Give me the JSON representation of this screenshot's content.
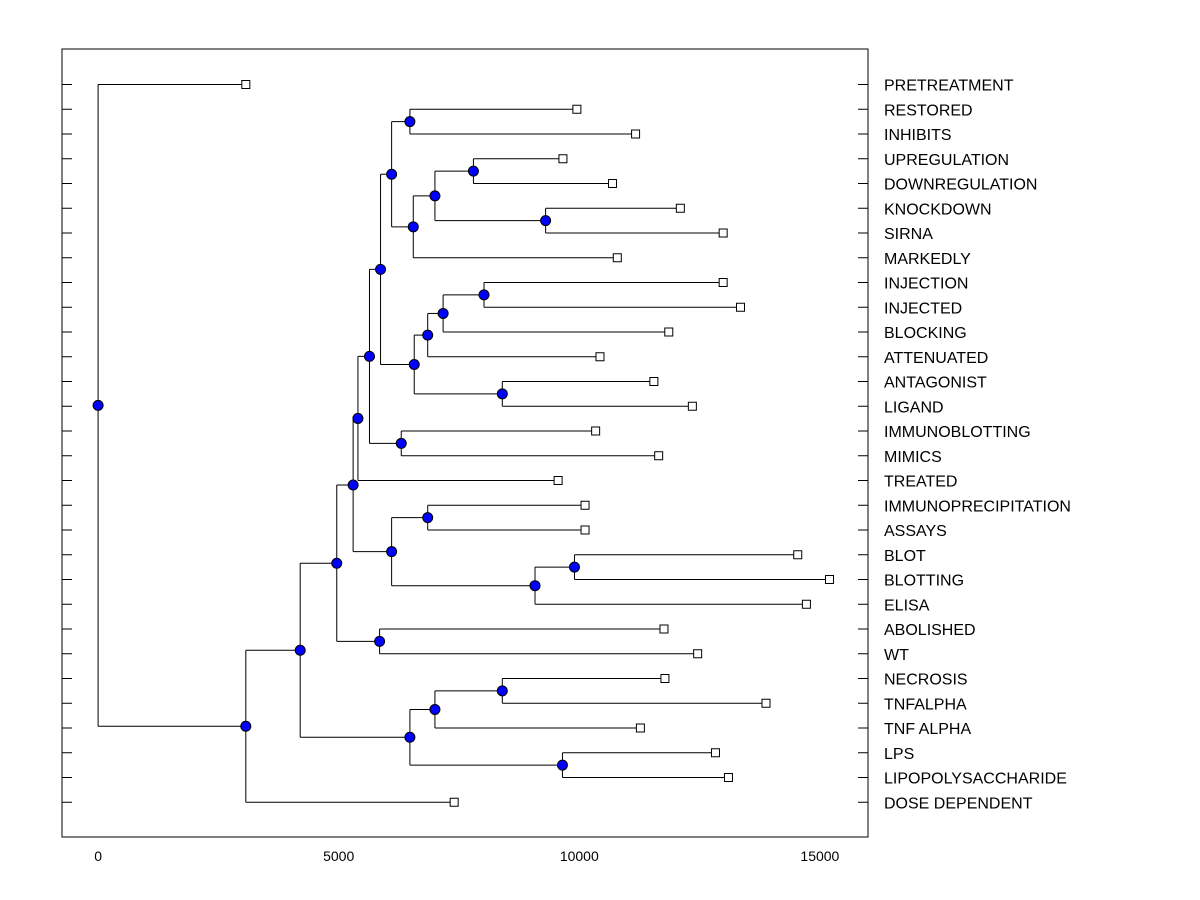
{
  "chart_data": {
    "type": "dendrogram",
    "orientation": "horizontal",
    "xlim": [
      -750,
      16000
    ],
    "x_ticks": [
      0,
      5000,
      10000,
      15000
    ],
    "x_tick_labels": [
      "0",
      "5000",
      "10000",
      "15000"
    ],
    "leaf_marker": "open-square",
    "node_marker": "filled-circle",
    "colors": {
      "node": "#0000ff",
      "leaf": "#ffffff",
      "line": "#000000",
      "background": "#ffffff"
    },
    "leaves": [
      {
        "label": "PRETREATMENT",
        "x": 3070
      },
      {
        "label": "RESTORED",
        "x": 9950
      },
      {
        "label": "INHIBITS",
        "x": 11170
      },
      {
        "label": "UPREGULATION",
        "x": 9660
      },
      {
        "label": "DOWNREGULATION",
        "x": 10690
      },
      {
        "label": "KNOCKDOWN",
        "x": 12100
      },
      {
        "label": "SIRNA",
        "x": 12990
      },
      {
        "label": "MARKEDLY",
        "x": 10790
      },
      {
        "label": "INJECTION",
        "x": 12990
      },
      {
        "label": "INJECTED",
        "x": 13350
      },
      {
        "label": "BLOCKING",
        "x": 11860
      },
      {
        "label": "ATTENUATED",
        "x": 10430
      },
      {
        "label": "ANTAGONIST",
        "x": 11550
      },
      {
        "label": "LIGAND",
        "x": 12350
      },
      {
        "label": "IMMUNOBLOTTING",
        "x": 10340
      },
      {
        "label": "MIMICS",
        "x": 11650
      },
      {
        "label": "TREATED",
        "x": 9560
      },
      {
        "label": "IMMUNOPRECIPITATION",
        "x": 10120
      },
      {
        "label": "ASSAYS",
        "x": 10120
      },
      {
        "label": "BLOT",
        "x": 14540
      },
      {
        "label": "BLOTTING",
        "x": 15200
      },
      {
        "label": "ELISA",
        "x": 14720
      },
      {
        "label": "ABOLISHED",
        "x": 11760
      },
      {
        "label": "WT",
        "x": 12460
      },
      {
        "label": "NECROSIS",
        "x": 11780
      },
      {
        "label": "TNFALPHA",
        "x": 13880
      },
      {
        "label": "TNF ALPHA",
        "x": 11270
      },
      {
        "label": "LPS",
        "x": 12830
      },
      {
        "label": "LIPOPOLYSACCHARIDE",
        "x": 13100
      },
      {
        "label": "DOSE DEPENDENT",
        "x": 7400
      }
    ],
    "merges": [
      {
        "x": 6480,
        "children": [
          "RESTORED",
          "INHIBITS"
        ]
      },
      {
        "x": 7800,
        "children": [
          "UPREGULATION",
          "DOWNREGULATION"
        ]
      },
      {
        "x": 9300,
        "children": [
          "KNOCKDOWN",
          "SIRNA"
        ]
      },
      {
        "x": 7000,
        "children": [
          "UPREGULATION+DOWNREGULATION",
          "KNOCKDOWN+SIRNA"
        ]
      },
      {
        "x": 6550,
        "children": [
          "UPREGULATION..SIRNA",
          "MARKEDLY"
        ]
      },
      {
        "x": 6100,
        "children": [
          "RESTORED+INHIBITS",
          "UPREGULATION..MARKEDLY"
        ]
      },
      {
        "x": 8020,
        "children": [
          "INJECTION",
          "INJECTED"
        ]
      },
      {
        "x": 7170,
        "children": [
          "INJECTION+INJECTED",
          "BLOCKING"
        ]
      },
      {
        "x": 6850,
        "children": [
          "INJECTION..BLOCKING",
          "ATTENUATED"
        ]
      },
      {
        "x": 8400,
        "children": [
          "ANTAGONIST",
          "LIGAND"
        ]
      },
      {
        "x": 6570,
        "children": [
          "INJECTION..ATTENUATED",
          "ANTAGONIST+LIGAND"
        ]
      },
      {
        "x": 5870,
        "children": [
          "RESTORED..MARKEDLY",
          "INJECTION..LIGAND"
        ]
      },
      {
        "x": 6300,
        "children": [
          "IMMUNOBLOTTING",
          "MIMICS"
        ]
      },
      {
        "x": 5640,
        "children": [
          "RESTORED..LIGAND",
          "IMMUNOBLOTTING+MIMICS"
        ]
      },
      {
        "x": 5400,
        "children": [
          "RESTORED..MIMICS",
          "TREATED"
        ]
      },
      {
        "x": 6850,
        "children": [
          "IMMUNOPRECIPITATION",
          "ASSAYS"
        ]
      },
      {
        "x": 9900,
        "children": [
          "BLOT",
          "BLOTTING"
        ]
      },
      {
        "x": 9080,
        "children": [
          "BLOT+BLOTTING",
          "ELISA"
        ]
      },
      {
        "x": 6100,
        "children": [
          "IMMUNOPRECIPITATION+ASSAYS",
          "BLOT..ELISA"
        ]
      },
      {
        "x": 5300,
        "children": [
          "RESTORED..TREATED",
          "IMMUNOPRECIPITATION..ELISA"
        ]
      },
      {
        "x": 5850,
        "children": [
          "ABOLISHED",
          "WT"
        ]
      },
      {
        "x": 4960,
        "children": [
          "RESTORED..ELISA",
          "ABOLISHED+WT"
        ]
      },
      {
        "x": 8400,
        "children": [
          "NECROSIS",
          "TNFALPHA"
        ]
      },
      {
        "x": 7000,
        "children": [
          "NECROSIS+TNFALPHA",
          "TNF ALPHA"
        ]
      },
      {
        "x": 9650,
        "children": [
          "LPS",
          "LIPOPOLYSACCHARIDE"
        ]
      },
      {
        "x": 6480,
        "children": [
          "NECROSIS..TNF ALPHA",
          "LPS+LIPOPOLYSACCHARIDE"
        ]
      },
      {
        "x": 4200,
        "children": [
          "RESTORED..WT",
          "NECROSIS..LIPOPOLYSACCHARIDE"
        ]
      },
      {
        "x": 3070,
        "children": [
          "RESTORED..LIPOPOLYSACCHARIDE",
          "DOSE DEPENDENT"
        ]
      },
      {
        "x": 0,
        "children": [
          "PRETREATMENT",
          "RESTORED..DOSE DEPENDENT"
        ]
      }
    ]
  }
}
